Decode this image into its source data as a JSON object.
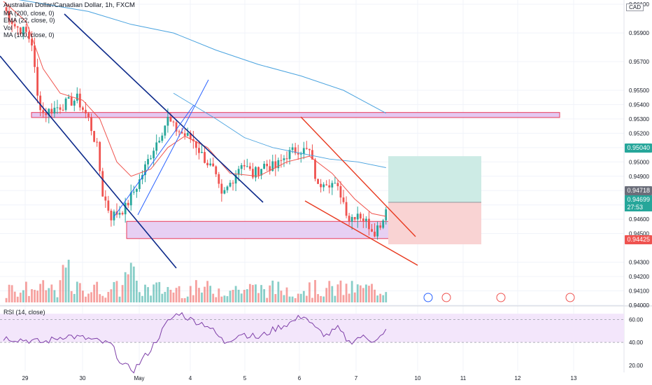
{
  "legend": {
    "title": "Australian Dollar/Canadian Dollar, 1h, FXCM",
    "ma200": "MA (200, close, 0)",
    "ema22": "EMA (22, close, 0)",
    "vol": "Vol",
    "ma100": "MA (100, close, 0)"
  },
  "rsi_legend": "RSI (14, close)",
  "currency": "CAD",
  "colors": {
    "bull": "#26a69a",
    "bear": "#ef5350",
    "ma200": "#4aa3df",
    "ema22": "#f0554f",
    "channel_dark": "#0d2a8a",
    "channel_light": "#2962ff",
    "wedge": "#e8391f",
    "zone_fill": "#e3c8f1",
    "zone_border": "#e83a5a",
    "rsi": "#7e3fa8",
    "rsi_band": "#f3e6fb",
    "target_fill": "#cdebe5",
    "stop_fill": "#f9d3d3"
  },
  "price_tags": {
    "target": "0.95040",
    "entry": "0.94718",
    "last": "0.94699",
    "countdown": "27:53",
    "stop": "0.94425"
  },
  "chart_data": {
    "type": "candlestick",
    "symbol": "Australian Dollar/Canadian Dollar",
    "timeframe": "1h",
    "source": "FXCM",
    "ylim": [
      0.94,
      0.9613
    ],
    "y_ticks": [
      "0.96100",
      "0.95900",
      "0.95700",
      "0.95500",
      "0.95400",
      "0.95300",
      "0.95200",
      "0.95100",
      "0.95000",
      "0.94900",
      "0.94800",
      "0.94700",
      "0.94600",
      "0.94500",
      "0.94300",
      "0.94200",
      "0.94100",
      "0.94000"
    ],
    "x_ticks": [
      "29",
      "30",
      "May",
      "4",
      "5",
      "6",
      "7",
      "10",
      "11",
      "12",
      "13"
    ],
    "anchors": [
      {
        "t": 0,
        "v": 0.9608
      },
      {
        "t": 4,
        "v": 0.9595
      },
      {
        "t": 8,
        "v": 0.959
      },
      {
        "t": 10,
        "v": 0.9583
      },
      {
        "t": 12,
        "v": 0.9545
      },
      {
        "t": 14,
        "v": 0.9534
      },
      {
        "t": 20,
        "v": 0.9539
      },
      {
        "t": 26,
        "v": 0.9544
      },
      {
        "t": 30,
        "v": 0.953
      },
      {
        "t": 33,
        "v": 0.951
      },
      {
        "t": 35,
        "v": 0.9478
      },
      {
        "t": 38,
        "v": 0.9462
      },
      {
        "t": 43,
        "v": 0.9468
      },
      {
        "t": 48,
        "v": 0.9487
      },
      {
        "t": 53,
        "v": 0.951
      },
      {
        "t": 58,
        "v": 0.953
      },
      {
        "t": 60,
        "v": 0.9524
      },
      {
        "t": 63,
        "v": 0.952
      },
      {
        "t": 67,
        "v": 0.9515
      },
      {
        "t": 70,
        "v": 0.9505
      },
      {
        "t": 74,
        "v": 0.9494
      },
      {
        "t": 77,
        "v": 0.9475
      },
      {
        "t": 80,
        "v": 0.9485
      },
      {
        "t": 84,
        "v": 0.95
      },
      {
        "t": 88,
        "v": 0.9491
      },
      {
        "t": 92,
        "v": 0.9498
      },
      {
        "t": 96,
        "v": 0.9496
      },
      {
        "t": 100,
        "v": 0.9505
      },
      {
        "t": 104,
        "v": 0.9509
      },
      {
        "t": 108,
        "v": 0.9507
      },
      {
        "t": 111,
        "v": 0.9482
      },
      {
        "t": 113,
        "v": 0.9488
      },
      {
        "t": 116,
        "v": 0.9485
      },
      {
        "t": 119,
        "v": 0.9478
      },
      {
        "t": 122,
        "v": 0.946
      },
      {
        "t": 125,
        "v": 0.9465
      },
      {
        "t": 128,
        "v": 0.9458
      },
      {
        "t": 131,
        "v": 0.9452
      },
      {
        "t": 134,
        "v": 0.946
      },
      {
        "t": 135,
        "v": 0.947
      }
    ],
    "overlays": {
      "ma200": [
        [
          0,
          0.9615
        ],
        [
          30,
          0.9605
        ],
        [
          45,
          0.9596
        ],
        [
          60,
          0.959
        ],
        [
          75,
          0.9578
        ],
        [
          90,
          0.9568
        ],
        [
          105,
          0.956
        ],
        [
          120,
          0.955
        ],
        [
          135,
          0.9534
        ]
      ],
      "ma100": [
        [
          60,
          0.9548
        ],
        [
          75,
          0.953
        ],
        [
          85,
          0.9517
        ],
        [
          95,
          0.951
        ],
        [
          105,
          0.9506
        ],
        [
          115,
          0.9502
        ],
        [
          125,
          0.95
        ],
        [
          135,
          0.9496
        ]
      ],
      "ema22": [
        [
          0,
          0.9612
        ],
        [
          8,
          0.9598
        ],
        [
          14,
          0.9565
        ],
        [
          20,
          0.9548
        ],
        [
          28,
          0.9543
        ],
        [
          34,
          0.953
        ],
        [
          40,
          0.95
        ],
        [
          45,
          0.949
        ],
        [
          52,
          0.9495
        ],
        [
          58,
          0.951
        ],
        [
          64,
          0.9518
        ],
        [
          72,
          0.951
        ],
        [
          80,
          0.9492
        ],
        [
          90,
          0.949
        ],
        [
          100,
          0.95
        ],
        [
          108,
          0.9504
        ],
        [
          116,
          0.9492
        ],
        [
          124,
          0.9474
        ],
        [
          130,
          0.9464
        ],
        [
          135,
          0.9462
        ]
      ]
    },
    "zones": {
      "resistance": [
        0.95345,
        0.9531
      ],
      "support": [
        0.94585,
        0.94465
      ]
    },
    "position": {
      "entry": 0.94718,
      "target": 0.9504,
      "stop": 0.94425
    },
    "volume_series": "bar heights vary; taller bars around sessions near 30 and early May",
    "rsi": {
      "levels": [
        "60.00",
        "40.00",
        "20.00"
      ],
      "ylim": [
        15,
        70
      ],
      "band": [
        40,
        65
      ],
      "anchors": [
        [
          0,
          44
        ],
        [
          8,
          42
        ],
        [
          14,
          40
        ],
        [
          22,
          46
        ],
        [
          30,
          43
        ],
        [
          38,
          38
        ],
        [
          42,
          20
        ],
        [
          46,
          16
        ],
        [
          52,
          34
        ],
        [
          58,
          58
        ],
        [
          62,
          66
        ],
        [
          66,
          60
        ],
        [
          72,
          55
        ],
        [
          78,
          40
        ],
        [
          84,
          48
        ],
        [
          90,
          44
        ],
        [
          96,
          52
        ],
        [
          102,
          58
        ],
        [
          106,
          64
        ],
        [
          110,
          52
        ],
        [
          114,
          46
        ],
        [
          118,
          52
        ],
        [
          122,
          40
        ],
        [
          126,
          45
        ],
        [
          130,
          42
        ],
        [
          134,
          46
        ],
        [
          135,
          50
        ]
      ]
    }
  }
}
